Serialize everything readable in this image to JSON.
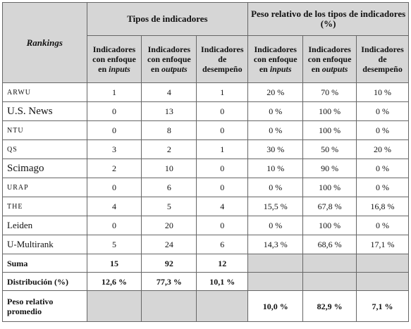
{
  "header": {
    "rankings": "Rankings",
    "group1": "Tipos de indicadores",
    "group2": "Peso relativo de los tipos de indicadores (%)",
    "columns": [
      {
        "text": "Indicadores con enfoque en",
        "em": "inputs"
      },
      {
        "text": "Indicadores con enfoque en",
        "em": "outputs"
      },
      {
        "text": "Indicadores de desempeño"
      },
      {
        "text": "Indicadores con enfoque en",
        "em": "inputs"
      },
      {
        "text": "Indicadores con enfoque en",
        "em": "outputs"
      },
      {
        "text": "Indicadores de desempeño"
      }
    ]
  },
  "table": {
    "rows": [
      [
        "ARWU",
        "1",
        "4",
        "1",
        "20 %",
        "70 %",
        "10 %"
      ],
      [
        "U.S. News",
        "0",
        "13",
        "0",
        "0 %",
        "100 %",
        "0 %"
      ],
      [
        "NTU",
        "0",
        "8",
        "0",
        "0 %",
        "100 %",
        "0 %"
      ],
      [
        "QS",
        "3",
        "2",
        "1",
        "30 %",
        "50 %",
        "20 %"
      ],
      [
        "Scimago",
        "2",
        "10",
        "0",
        "10 %",
        "90 %",
        "0 %"
      ],
      [
        "URAP",
        "0",
        "6",
        "0",
        "0 %",
        "100 %",
        "0 %"
      ],
      [
        "THE",
        "4",
        "5",
        "4",
        "15,5 %",
        "67,8 %",
        "16,8 %"
      ],
      [
        "Leiden",
        "0",
        "20",
        "0",
        "0 %",
        "100 %",
        "0 %"
      ],
      [
        "U-Multirank",
        "5",
        "24",
        "6",
        "14,3 %",
        "68,6 %",
        "17,1 %"
      ]
    ],
    "suma": [
      "Suma",
      "15",
      "92",
      "12"
    ],
    "distribucion": [
      "Distribución (%)",
      "12,6 %",
      "77,3 %",
      "10,1 %"
    ],
    "peso": [
      "Peso relativo promedio",
      "10,0 %",
      "82,9 %",
      "7,1 %"
    ]
  }
}
